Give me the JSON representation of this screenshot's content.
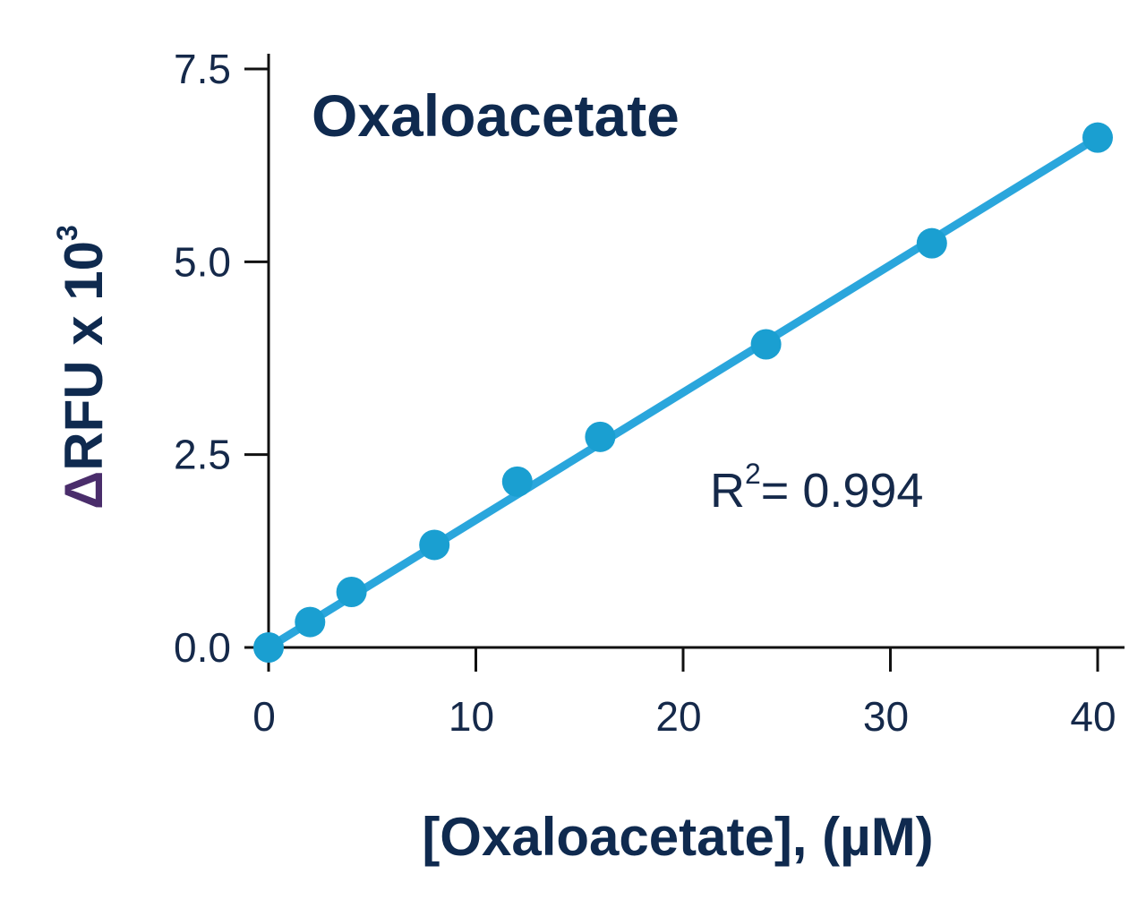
{
  "chart_data": {
    "type": "scatter",
    "title": "Oxaloacetate",
    "xlabel": "[Oxaloacetate], (µM)",
    "ylabel": {
      "delta": "Δ",
      "main": "RFU x 10",
      "superscript": "3"
    },
    "xlim": [
      0,
      40
    ],
    "ylim": [
      0,
      7.5
    ],
    "x_ticks": [
      0,
      10,
      20,
      30,
      40
    ],
    "x_tick_labels": [
      "0",
      "10",
      "20",
      "30",
      "40"
    ],
    "y_ticks": [
      0,
      2.5,
      5.0,
      7.5
    ],
    "y_tick_labels": [
      "0.0",
      "2.5",
      "5.0",
      "7.5"
    ],
    "grid": false,
    "series": [
      {
        "x": [
          0,
          2,
          4,
          8,
          12,
          16,
          24,
          32,
          40
        ],
        "y": [
          0.0,
          0.33,
          0.72,
          1.33,
          2.15,
          2.73,
          3.93,
          5.24,
          6.61
        ],
        "fit_line": {
          "x": [
            0,
            40
          ],
          "y": [
            0.0,
            6.61
          ]
        }
      }
    ],
    "annotation": {
      "prefix": "R",
      "superscript": "2",
      "suffix": "= 0.994"
    },
    "colors": {
      "marker": "#1a9fd1",
      "line": "#2aa6dc",
      "axis": "#111111",
      "text": "#15294a",
      "delta": "#4a2d6b"
    }
  }
}
